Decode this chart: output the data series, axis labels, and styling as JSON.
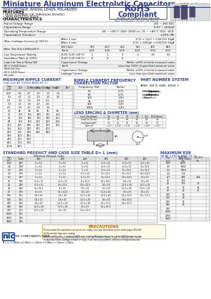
{
  "title": "Miniature Aluminum Electrolytic Capacitors",
  "series": "NRE-H Series",
  "subtitle1": "HIGH VOLTAGE, RADIAL LEADS, POLARIZED",
  "features_title": "FEATURES",
  "features": [
    "HIGH VOLTAGE (UP THROUGH 450VDC)",
    "NEW REDUCED SIZES"
  ],
  "characteristics_title": "CHARACTERISTICS",
  "rohs_line1": "RoHS",
  "rohs_line2": "Compliant",
  "rohs_sub": "includes all homogeneous materials",
  "part_sys": "New Part Number System for Details",
  "bg_color": "#ffffff",
  "header_color": "#2d3a8c",
  "lc": "#999999",
  "tc": "#000000",
  "blue_wm": "#b8c8e8"
}
